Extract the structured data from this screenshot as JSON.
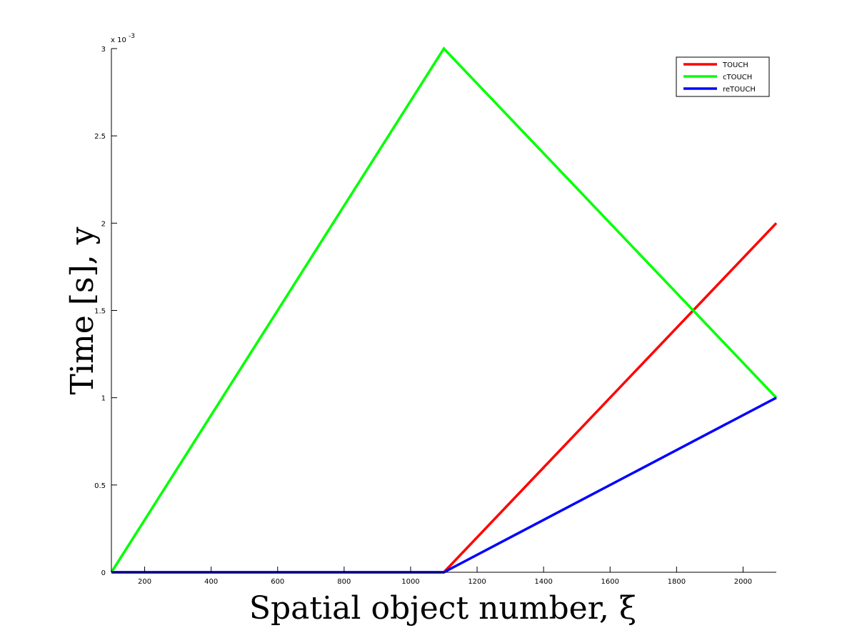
{
  "chart_data": {
    "type": "line",
    "xlabel": "Spatial object number, ξ",
    "ylabel": "Time [s], y",
    "xlim": [
      100,
      2100
    ],
    "ylim": [
      0,
      0.003
    ],
    "x_ticks": [
      200,
      400,
      600,
      800,
      1000,
      1200,
      1400,
      1600,
      1800,
      2000
    ],
    "x_tick_labels": [
      "200",
      "400",
      "600",
      "800",
      "1000",
      "1200",
      "1400",
      "1600",
      "1800",
      "2000"
    ],
    "y_ticks": [
      0,
      0.0005,
      0.001,
      0.0015,
      0.002,
      0.0025,
      0.003
    ],
    "y_tick_labels": [
      "0",
      "0.5",
      "1",
      "1.5",
      "2",
      "2.5",
      "3"
    ],
    "y_exponent_label": "x 10",
    "y_exponent_power": "-3",
    "grid": false,
    "legend_position": "top-right",
    "series": [
      {
        "name": "TOUCH",
        "color": "#ff0000",
        "x": [
          100,
          1100,
          2100
        ],
        "y": [
          0,
          0,
          0.002
        ]
      },
      {
        "name": "cTOUCH",
        "color": "#00ff00",
        "x": [
          100,
          1100,
          2100
        ],
        "y": [
          0,
          0.003,
          0.001
        ]
      },
      {
        "name": "reTOUCH",
        "color": "#0000ff",
        "x": [
          100,
          1100,
          2100
        ],
        "y": [
          0,
          0,
          0.001
        ]
      }
    ]
  }
}
